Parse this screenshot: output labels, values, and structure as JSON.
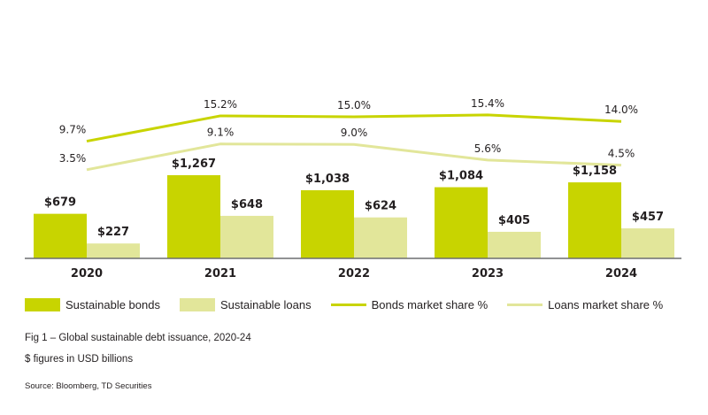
{
  "chart_data": {
    "type": "bar",
    "title": "Fig 1 – Global sustainable debt issuance, 2020-24",
    "subtitle": "$ figures in USD billions",
    "source": "Source: Bloomberg, TD Securities",
    "categories": [
      "2020",
      "2021",
      "2022",
      "2023",
      "2024"
    ],
    "series": [
      {
        "name": "Sustainable bonds",
        "kind": "bar",
        "color": "#c8d400",
        "values": [
          679,
          1267,
          1038,
          1084,
          1158
        ],
        "labels": [
          "$679",
          "$1,267",
          "$1,038",
          "$1,084",
          "$1,158"
        ]
      },
      {
        "name": "Sustainable loans",
        "kind": "bar",
        "color": "#e2e69a",
        "values": [
          227,
          648,
          624,
          405,
          457
        ],
        "labels": [
          "$227",
          "$648",
          "$624",
          "$405",
          "$457"
        ]
      },
      {
        "name": "Bonds market share %",
        "kind": "line",
        "color": "#c8d400",
        "values": [
          9.7,
          15.2,
          15.0,
          15.4,
          14.0
        ],
        "labels": [
          "9.7%",
          "15.2%",
          "15.0%",
          "15.4%",
          "14.0%"
        ]
      },
      {
        "name": "Loans market share %",
        "kind": "line",
        "color": "#e2e69a",
        "values": [
          3.5,
          9.1,
          9.0,
          5.6,
          4.5
        ],
        "labels": [
          "3.5%",
          "9.1%",
          "9.0%",
          "5.6%",
          "4.5%"
        ]
      }
    ],
    "xlabel": "",
    "ylabel": "",
    "grid": false,
    "legend_position": "bottom"
  },
  "legend": [
    {
      "label": "Sustainable bonds",
      "type": "box",
      "color": "#c8d400"
    },
    {
      "label": "Sustainable loans",
      "type": "box",
      "color": "#e2e69a"
    },
    {
      "label": "Bonds market share %",
      "type": "line",
      "color": "#c8d400"
    },
    {
      "label": "Loans market share %",
      "type": "line",
      "color": "#e2e69a"
    }
  ],
  "captions": {
    "title": "Fig 1 – Global sustainable debt issuance, 2020-24",
    "units": "$ figures in USD billions",
    "source": "Source: Bloomberg, TD Securities"
  }
}
